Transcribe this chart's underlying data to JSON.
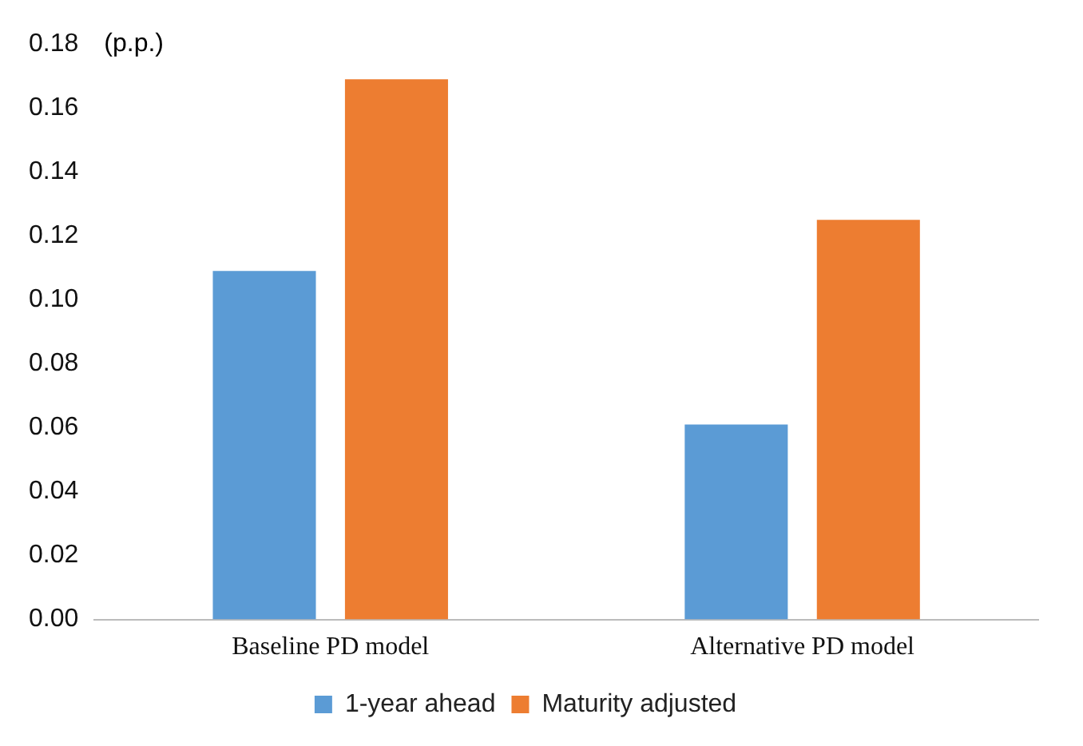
{
  "chart_data": {
    "type": "bar",
    "ylabel": "(p.p.)",
    "categories": [
      "Baseline PD model",
      "Alternative PD model"
    ],
    "series": [
      {
        "name": "1-year ahead",
        "color": "#5b9bd5",
        "values": [
          0.109,
          0.061
        ]
      },
      {
        "name": "Maturity adjusted",
        "color": "#ed7d31",
        "values": [
          0.169,
          0.125
        ]
      }
    ],
    "ylim": [
      0,
      0.18
    ],
    "yticks": [
      {
        "value": 0,
        "label": "0.00"
      },
      {
        "value": 0.02,
        "label": "0.02"
      },
      {
        "value": 0.04,
        "label": "0.04"
      },
      {
        "value": 0.06,
        "label": "0.06"
      },
      {
        "value": 0.08,
        "label": "0.08"
      },
      {
        "value": 0.1,
        "label": "0.10"
      },
      {
        "value": 0.12,
        "label": "0.12"
      },
      {
        "value": 0.14,
        "label": "0.14"
      },
      {
        "value": 0.16,
        "label": "0.16"
      },
      {
        "value": 0.18,
        "label": "0.18"
      }
    ],
    "grid": false,
    "legend": "bottom"
  }
}
